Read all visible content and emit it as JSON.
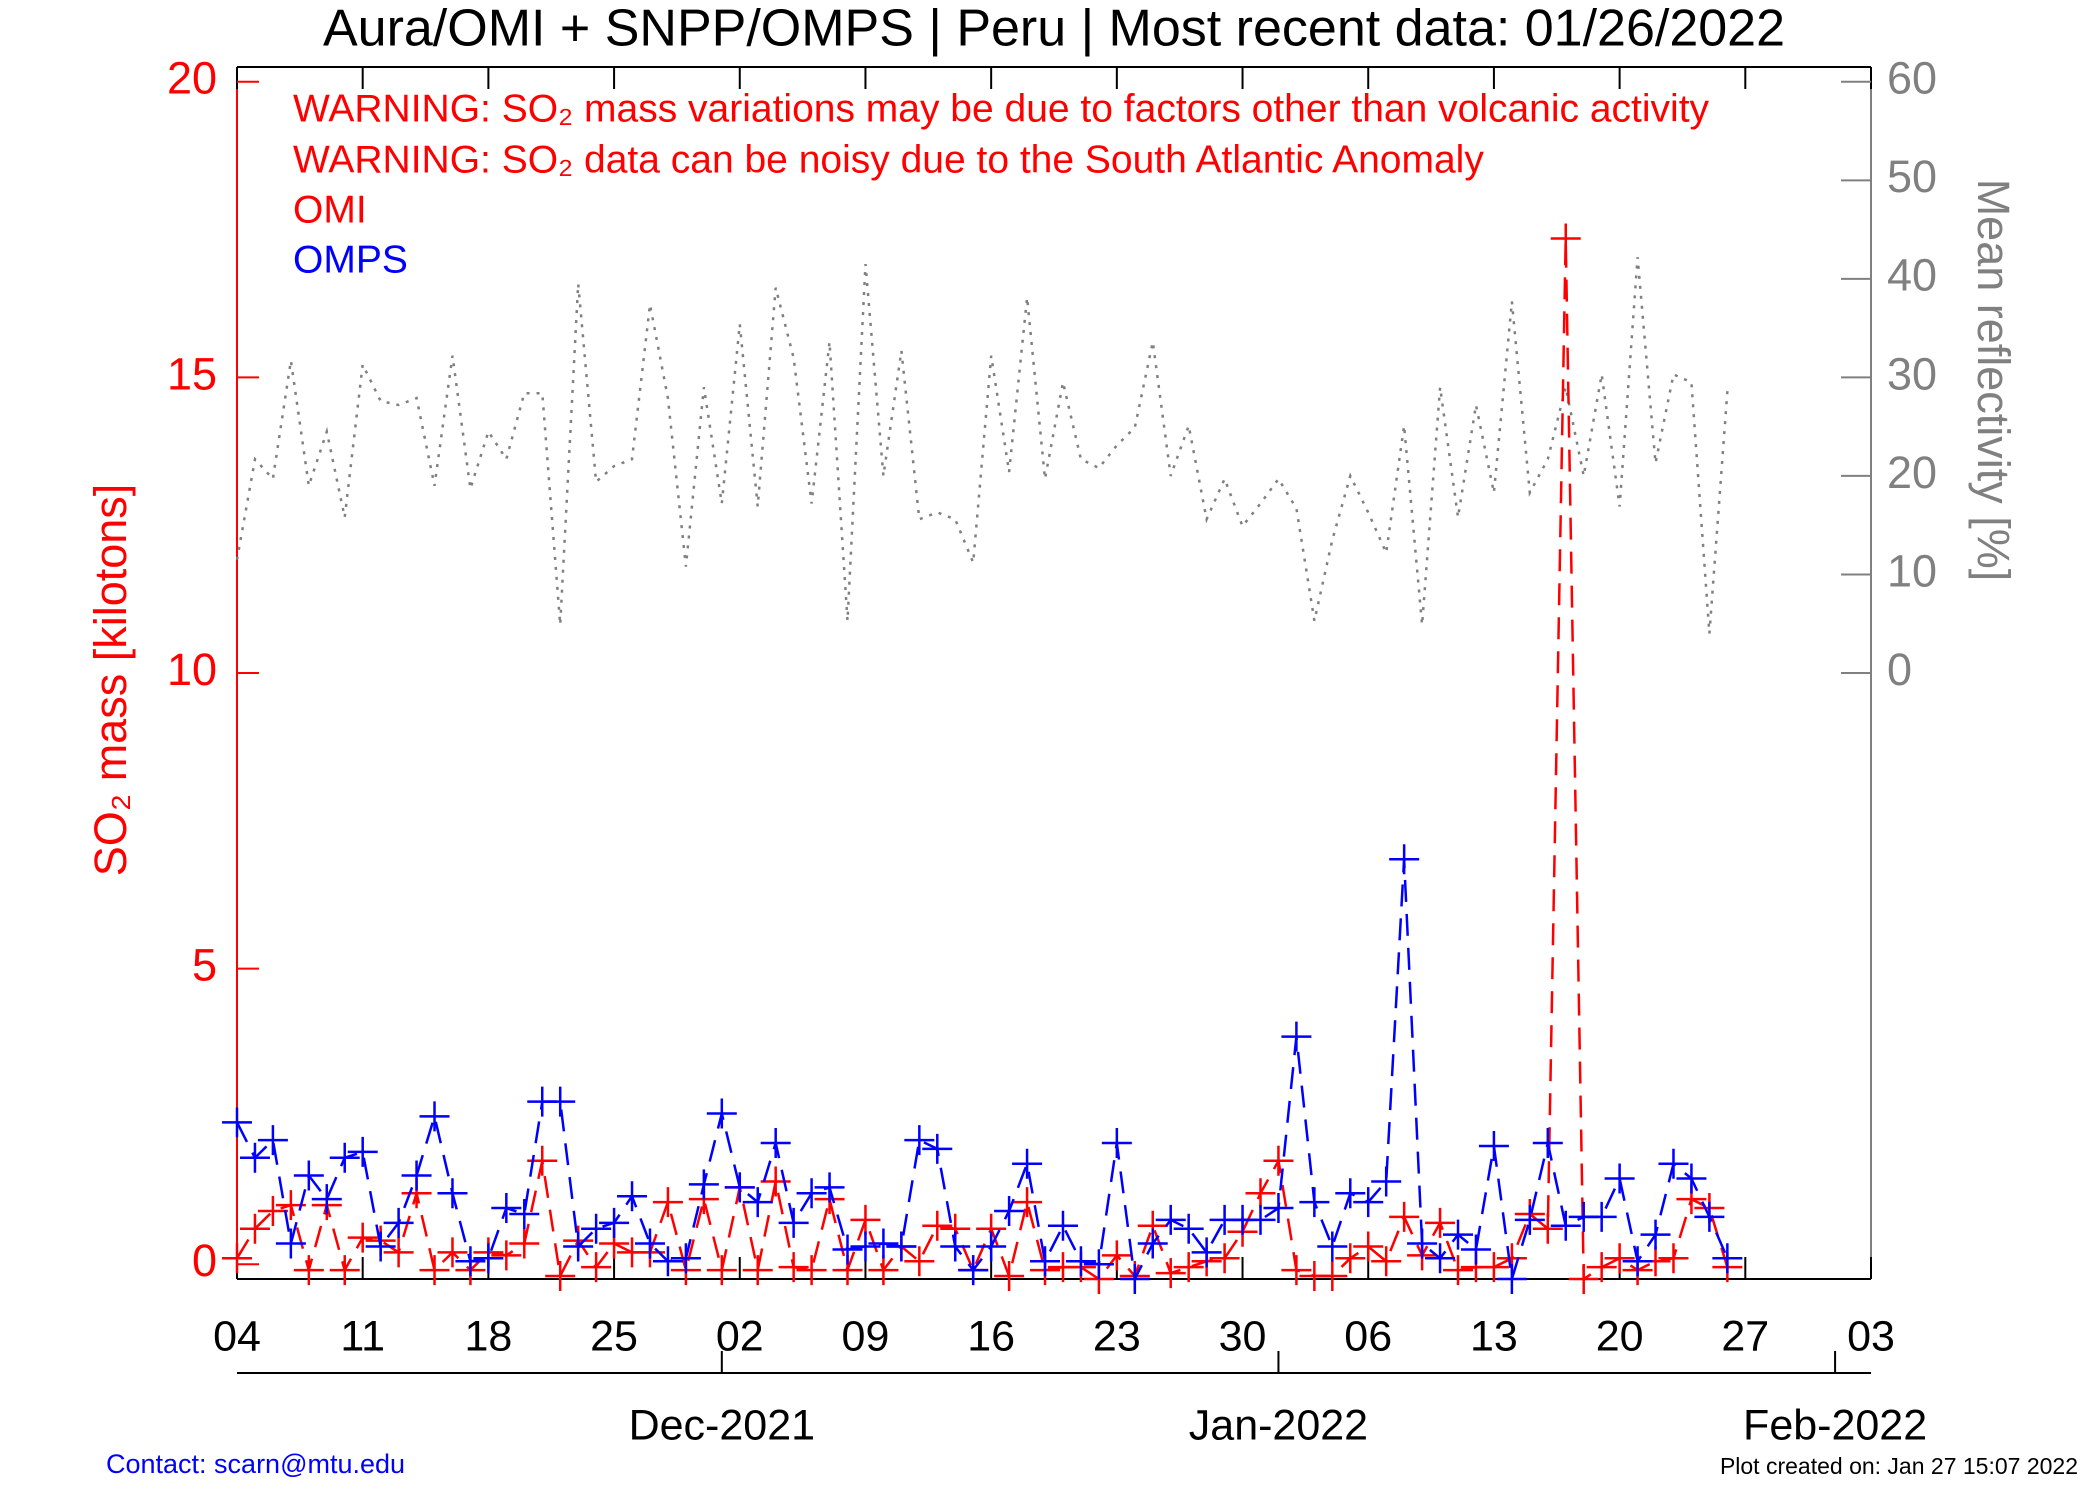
{
  "chart_data": {
    "type": "line",
    "title": "Aura/OMI + SNPP/OMPS | Peru | Most recent data: 01/26/2022",
    "annotations": [
      "WARNING: SO₂ mass variations may be due to factors other than volcanic activity",
      "WARNING: SO₂ data can be noisy due to the South Atlantic Anomaly"
    ],
    "ylabel": "SO₂ mass [kilotons]",
    "y2label": "Mean reflectivity [%]",
    "footer_left": "Contact: scarn@mtu.edu",
    "footer_right": "Plot created on: Jan 27 15:07 2022",
    "x": [
      "2021-11-04",
      "2021-11-05",
      "2021-11-06",
      "2021-11-07",
      "2021-11-08",
      "2021-11-09",
      "2021-11-10",
      "2021-11-11",
      "2021-11-12",
      "2021-11-13",
      "2021-11-14",
      "2021-11-15",
      "2021-11-16",
      "2021-11-17",
      "2021-11-18",
      "2021-11-19",
      "2021-11-20",
      "2021-11-21",
      "2021-11-22",
      "2021-11-23",
      "2021-11-24",
      "2021-11-25",
      "2021-11-26",
      "2021-11-27",
      "2021-11-28",
      "2021-11-29",
      "2021-11-30",
      "2021-12-01",
      "2021-12-02",
      "2021-12-03",
      "2021-12-04",
      "2021-12-05",
      "2021-12-06",
      "2021-12-07",
      "2021-12-08",
      "2021-12-09",
      "2021-12-10",
      "2021-12-11",
      "2021-12-12",
      "2021-12-13",
      "2021-12-14",
      "2021-12-15",
      "2021-12-16",
      "2021-12-17",
      "2021-12-18",
      "2021-12-19",
      "2021-12-20",
      "2021-12-21",
      "2021-12-22",
      "2021-12-23",
      "2021-12-24",
      "2021-12-25",
      "2021-12-26",
      "2021-12-27",
      "2021-12-28",
      "2021-12-29",
      "2021-12-30",
      "2021-12-31",
      "2022-01-01",
      "2022-01-02",
      "2022-01-03",
      "2022-01-04",
      "2022-01-05",
      "2022-01-06",
      "2022-01-07",
      "2022-01-08",
      "2022-01-09",
      "2022-01-10",
      "2022-01-11",
      "2022-01-12",
      "2022-01-13",
      "2022-01-14",
      "2022-01-15",
      "2022-01-16",
      "2022-01-17",
      "2022-01-18",
      "2022-01-19",
      "2022-01-20",
      "2022-01-21",
      "2022-01-22",
      "2022-01-23",
      "2022-01-24",
      "2022-01-25",
      "2022-01-26"
    ],
    "series": [
      {
        "name": "OMI",
        "color": "#ff0000",
        "marker": "plus",
        "style": "dashed",
        "values": [
          0.1,
          0.6,
          0.9,
          1.0,
          -0.1,
          1.0,
          -0.1,
          0.45,
          0.4,
          0.2,
          1.2,
          -0.1,
          0.2,
          -0.1,
          0.2,
          0.15,
          0.35,
          1.75,
          -0.2,
          0.4,
          -0.05,
          0.35,
          0.2,
          0.2,
          1.05,
          -0.1,
          1.1,
          -0.1,
          1.3,
          -0.1,
          1.4,
          -0.05,
          -0.1,
          1.1,
          -0.1,
          0.75,
          -0.1,
          0.3,
          0.05,
          0.65,
          0.6,
          -0.1,
          0.6,
          -0.2,
          1.05,
          -0.1,
          -0.05,
          -0.05,
          -0.25,
          0.15,
          -0.2,
          0.65,
          -0.15,
          -0.05,
          0.05,
          0.1,
          0.55,
          1.2,
          1.75,
          -0.1,
          -0.2,
          -0.2,
          0.1,
          0.3,
          0.05,
          0.8,
          0.15,
          0.7,
          -0.1,
          -0.05,
          -0.05,
          0.1,
          0.85,
          0.6,
          17.35,
          -0.25,
          -0.05,
          0.1,
          -0.1,
          0.05,
          0.1,
          1.1,
          0.95,
          -0.05
        ]
      },
      {
        "name": "OMPS",
        "color": "#0000ff",
        "marker": "plus",
        "style": "dashed",
        "values": [
          2.4,
          1.8,
          2.1,
          0.35,
          1.5,
          1.1,
          1.8,
          1.9,
          0.3,
          0.7,
          1.5,
          2.5,
          1.2,
          0.05,
          0.1,
          0.95,
          0.85,
          2.75,
          2.75,
          0.3,
          0.6,
          0.7,
          1.15,
          0.35,
          0.05,
          0.1,
          1.35,
          2.55,
          1.3,
          1.05,
          2.05,
          0.7,
          1.2,
          1.3,
          0.25,
          0.3,
          0.35,
          0.3,
          2.1,
          1.95,
          0.3,
          -0.1,
          0.3,
          0.9,
          1.7,
          0.05,
          0.65,
          0.05,
          0.0,
          2.05,
          -0.25,
          0.35,
          0.75,
          0.6,
          0.2,
          0.75,
          0.75,
          0.75,
          0.95,
          3.85,
          1.05,
          0.3,
          1.2,
          1.05,
          1.4,
          6.85,
          0.35,
          0.1,
          0.5,
          0.25,
          2.0,
          -0.25,
          0.75,
          2.05,
          0.65,
          0.8,
          0.8,
          1.45,
          0.05,
          0.5,
          1.7,
          1.45,
          0.8,
          0.1
        ]
      },
      {
        "color": "#808080",
        "style": "dotted",
        "axis": "y2",
        "values": [
          11.5,
          21.7,
          19.7,
          31.7,
          19,
          24.5,
          15.8,
          31.3,
          27.6,
          27.2,
          27.9,
          19,
          32.2,
          18.7,
          24.5,
          21.7,
          28.4,
          28.4,
          4.9,
          39.5,
          19.4,
          21,
          21.7,
          37.4,
          27.9,
          10.8,
          29,
          17.2,
          35.4,
          16.9,
          39.1,
          32,
          17.2,
          33.6,
          5.3,
          41.5,
          20,
          32.7,
          15.6,
          16.3,
          15.6,
          11.2,
          32.2,
          20.4,
          38.1,
          19.7,
          29.5,
          21.7,
          20.8,
          23.1,
          24.9,
          33.6,
          20,
          25.1,
          15.6,
          19.7,
          14.9,
          17.2,
          19.7,
          16.7,
          5.3,
          13.5,
          20,
          16.3,
          12.2,
          25.1,
          4.9,
          29,
          15.8,
          27.2,
          18.3,
          37.7,
          18.3,
          21.7,
          29,
          20,
          30.3,
          16.9,
          42.2,
          21.3,
          30.3,
          29.5,
          4,
          28.6
        ]
      }
    ],
    "xlim": [
      "2021-11-04",
      "2022-02-03"
    ],
    "xticks": [
      {
        "value": "2021-11-04",
        "label": "04"
      },
      {
        "value": "2021-11-11",
        "label": "11"
      },
      {
        "value": "2021-11-18",
        "label": "18"
      },
      {
        "value": "2021-11-25",
        "label": "25"
      },
      {
        "value": "2021-12-02",
        "label": "02"
      },
      {
        "value": "2021-12-09",
        "label": "09"
      },
      {
        "value": "2021-12-16",
        "label": "16"
      },
      {
        "value": "2021-12-23",
        "label": "23"
      },
      {
        "value": "2021-12-30",
        "label": "30"
      },
      {
        "value": "2022-01-06",
        "label": "06"
      },
      {
        "value": "2022-01-13",
        "label": "13"
      },
      {
        "value": "2022-01-20",
        "label": "20"
      },
      {
        "value": "2022-01-27",
        "label": "27"
      },
      {
        "value": "2022-02-03",
        "label": "03"
      }
    ],
    "month_ticks": [
      {
        "value": "2021-12-01",
        "label": "Dec-2021"
      },
      {
        "value": "2022-01-01",
        "label": "Jan-2022"
      },
      {
        "value": "2022-02-01",
        "label": "Feb-2022"
      }
    ],
    "ylim": [
      -0.25,
      20.25
    ],
    "yticks": [
      0,
      5,
      10,
      15,
      20
    ],
    "y2lim": [
      -61.5,
      61.5
    ],
    "y2ticks": [
      0,
      10,
      20,
      30,
      40,
      50,
      60
    ],
    "ycolor": "#ff0000",
    "y2color": "#808080",
    "grid": false
  }
}
